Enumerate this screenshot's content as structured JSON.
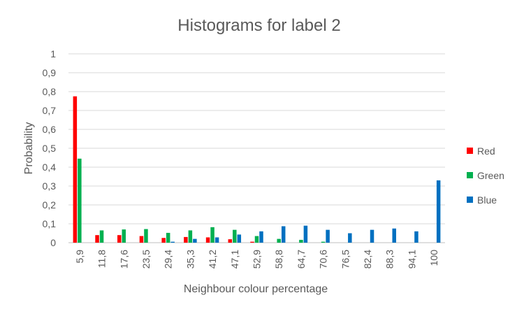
{
  "chart_data": {
    "type": "bar",
    "title": "Histograms for label 2",
    "xlabel": "Neighbour colour percentage",
    "ylabel": "Probability",
    "categories": [
      "5,9",
      "11,8",
      "17,6",
      "23,5",
      "29,4",
      "35,3",
      "41,2",
      "47,1",
      "52,9",
      "58,8",
      "64,7",
      "70,6",
      "76,5",
      "82,4",
      "88,3",
      "94,1",
      "100"
    ],
    "ylim": [
      0,
      1
    ],
    "yticks": [
      0,
      0.1,
      0.2,
      0.3,
      0.4,
      0.5,
      0.6,
      0.7,
      0.8,
      0.9,
      1
    ],
    "ytick_labels": [
      "0",
      "0,1",
      "0,2",
      "0,3",
      "0,4",
      "0,5",
      "0,6",
      "0,7",
      "0,8",
      "0,9",
      "1"
    ],
    "grid": true,
    "legend_position": "right",
    "series": [
      {
        "name": "Red",
        "color": "#ff0000",
        "values": [
          0.775,
          0.04,
          0.04,
          0.035,
          0.025,
          0.03,
          0.028,
          0.018,
          0.005,
          0,
          0,
          0,
          0,
          0,
          0,
          0,
          0
        ]
      },
      {
        "name": "Green",
        "color": "#00b050",
        "values": [
          0.445,
          0.065,
          0.07,
          0.072,
          0.052,
          0.065,
          0.082,
          0.068,
          0.035,
          0.02,
          0.015,
          0.005,
          0,
          0,
          0,
          0,
          0
        ]
      },
      {
        "name": "Blue",
        "color": "#0070c0",
        "values": [
          0,
          0,
          0,
          0,
          0.005,
          0.02,
          0.028,
          0.043,
          0.06,
          0.087,
          0.09,
          0.068,
          0.05,
          0.068,
          0.075,
          0.06,
          0.33
        ]
      }
    ]
  }
}
